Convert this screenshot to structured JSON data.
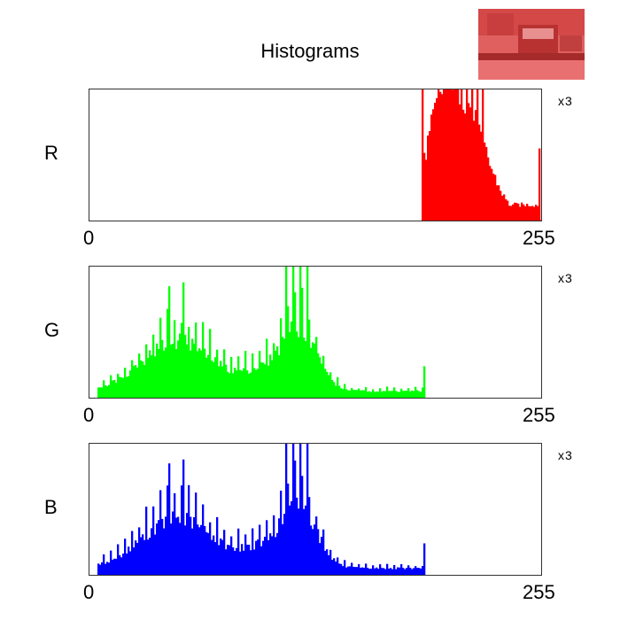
{
  "chart_data": [
    {
      "type": "bar",
      "title": "Histograms",
      "channel": "R",
      "color": "#ff0000",
      "xlim": [
        0,
        255
      ],
      "x_ticks": [
        "0",
        "255"
      ],
      "y_scale_label": "x3",
      "peaks": [
        {
          "center": 209,
          "width": 14,
          "height": 0.9
        },
        {
          "center": 198,
          "width": 8,
          "height": 0.3
        }
      ],
      "range": [
        188,
        255
      ],
      "spikes": [
        {
          "x": 188,
          "y": 1.0
        },
        {
          "x": 201,
          "y": 1.0
        },
        {
          "x": 204,
          "y": 1.0
        },
        {
          "x": 207,
          "y": 1.0
        },
        {
          "x": 210,
          "y": 1.0
        },
        {
          "x": 213,
          "y": 1.0
        },
        {
          "x": 216,
          "y": 1.0
        },
        {
          "x": 219,
          "y": 1.0
        },
        {
          "x": 222,
          "y": 1.0
        },
        {
          "x": 254,
          "y": 0.55
        }
      ],
      "tail": {
        "start": 232,
        "end": 253,
        "level": 0.12
      }
    },
    {
      "type": "bar",
      "channel": "G",
      "color": "#00ff00",
      "xlim": [
        0,
        255
      ],
      "x_ticks": [
        "0",
        "255"
      ],
      "y_scale_label": "x3",
      "peaks": [
        {
          "center": 50,
          "width": 20,
          "height": 0.38
        },
        {
          "center": 118,
          "width": 10,
          "height": 0.48
        },
        {
          "center": 95,
          "width": 10,
          "height": 0.12
        }
      ],
      "range": [
        5,
        189
      ],
      "baseline": 0.05,
      "spike_period": 4,
      "spike_boost": 1.5,
      "spikes": [
        {
          "x": 111,
          "y": 1.0
        },
        {
          "x": 115,
          "y": 1.0
        },
        {
          "x": 119,
          "y": 1.0
        },
        {
          "x": 123,
          "y": 1.0
        },
        {
          "x": 45,
          "y": 0.85
        },
        {
          "x": 53,
          "y": 0.88
        },
        {
          "x": 189,
          "y": 0.24
        }
      ]
    },
    {
      "type": "bar",
      "channel": "B",
      "color": "#0000ff",
      "xlim": [
        0,
        255
      ],
      "x_ticks": [
        "0",
        "255"
      ],
      "y_scale_label": "x3",
      "peaks": [
        {
          "center": 50,
          "width": 20,
          "height": 0.38
        },
        {
          "center": 118,
          "width": 10,
          "height": 0.48
        },
        {
          "center": 95,
          "width": 10,
          "height": 0.12
        }
      ],
      "range": [
        5,
        189
      ],
      "baseline": 0.05,
      "spike_period": 4,
      "spike_boost": 1.5,
      "spikes": [
        {
          "x": 111,
          "y": 1.0
        },
        {
          "x": 115,
          "y": 1.0
        },
        {
          "x": 119,
          "y": 1.0
        },
        {
          "x": 123,
          "y": 1.0
        },
        {
          "x": 45,
          "y": 0.85
        },
        {
          "x": 53,
          "y": 0.88
        },
        {
          "x": 189,
          "y": 0.24
        }
      ]
    }
  ],
  "thumbnail": {
    "description_icon": "bus-street-image-thumbnail",
    "tint": "#e05050"
  }
}
